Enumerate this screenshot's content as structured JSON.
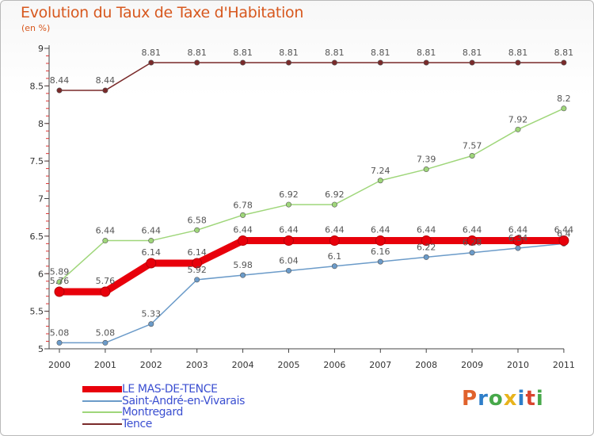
{
  "header": {
    "title": "Evolution du Taux de Taxe d'Habitation",
    "subtitle": "(en %)"
  },
  "logo": {
    "text": "Proxiti",
    "letter_colors": [
      "#e0622c",
      "#2e7ec9",
      "#47a84a",
      "#e8b31c",
      "#2e7ec9",
      "#d9442e",
      "#47a84a"
    ]
  },
  "chart_data": {
    "type": "line",
    "title": "Evolution du Taux de Taxe d'Habitation",
    "subtitle": "(en %)",
    "x": [
      "2000",
      "2001",
      "2002",
      "2003",
      "2004",
      "2005",
      "2006",
      "2007",
      "2008",
      "2009",
      "2010",
      "2011"
    ],
    "ylim": [
      5,
      9
    ],
    "yticks": [
      "5",
      "5.5",
      "6",
      "6.5",
      "7",
      "7.5",
      "8",
      "8.5",
      "9"
    ],
    "grid": false,
    "legend_position": "bottom-left",
    "series": [
      {
        "name": "LE MAS-DE-TENCE",
        "color": "#e8000b",
        "values": [
          5.76,
          5.76,
          6.14,
          6.14,
          6.44,
          6.44,
          6.44,
          6.44,
          6.44,
          6.44,
          6.44,
          6.44
        ],
        "labels": [
          "5.76",
          "5.76",
          "6.14",
          "6.14",
          "6.44",
          "6.44",
          "6.44",
          "6.44",
          "6.44",
          "6.44",
          "6.44",
          "6.44"
        ]
      },
      {
        "name": "Saint-André-en-Vivarais",
        "color": "#6b9bc9",
        "values": [
          5.08,
          5.08,
          5.33,
          5.92,
          5.98,
          6.04,
          6.1,
          6.16,
          6.22,
          6.28,
          6.34,
          6.4
        ],
        "labels": [
          "5.08",
          "5.08",
          "5.33",
          "5.92",
          "5.98",
          "6.04",
          "6.1",
          "6.16",
          "6.22",
          "6.28",
          "6.34",
          "6.4"
        ]
      },
      {
        "name": "Montregard",
        "color": "#9fd67a",
        "values": [
          5.89,
          6.44,
          6.44,
          6.58,
          6.78,
          6.92,
          6.92,
          7.24,
          7.39,
          7.57,
          7.92,
          8.2
        ],
        "labels": [
          "5.89",
          "6.44",
          "6.44",
          "6.58",
          "6.78",
          "6.92",
          "6.92",
          "7.24",
          "7.39",
          "7.57",
          "7.92",
          "8.2"
        ]
      },
      {
        "name": "Tence",
        "color": "#7a2a2a",
        "values": [
          8.44,
          8.44,
          8.81,
          8.81,
          8.81,
          8.81,
          8.81,
          8.81,
          8.81,
          8.81,
          8.81,
          8.81
        ],
        "labels": [
          "8.44",
          "8.44",
          "8.81",
          "8.81",
          "8.81",
          "8.81",
          "8.81",
          "8.81",
          "8.81",
          "8.81",
          "8.81",
          "8.81"
        ]
      }
    ]
  }
}
